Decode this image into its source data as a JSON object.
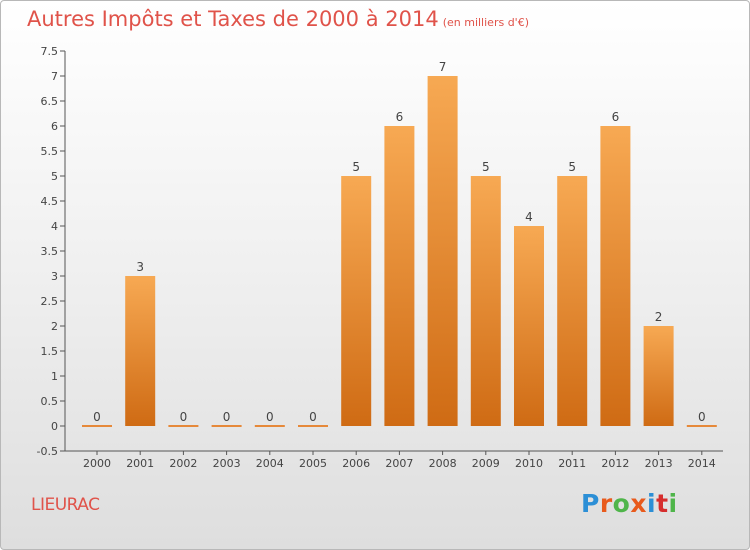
{
  "header": {
    "title": "Autres Impôts et Taxes de 2000 à 2014",
    "unit": "(en milliers d'€)"
  },
  "footer": {
    "place": "LIEURAC",
    "logo": "Proxiti",
    "logo_colors": [
      "#2c8fd6",
      "#e85a1c",
      "#4fb54a",
      "#e85a1c",
      "#2c8fd6",
      "#d62d2d",
      "#4fb54a"
    ]
  },
  "chart_data": {
    "type": "bar",
    "categories": [
      "2000",
      "2001",
      "2002",
      "2003",
      "2004",
      "2005",
      "2006",
      "2007",
      "2008",
      "2009",
      "2010",
      "2011",
      "2012",
      "2013",
      "2014"
    ],
    "values": [
      0,
      3,
      0,
      0,
      0,
      0,
      5,
      6,
      7,
      5,
      4,
      5,
      6,
      2,
      0
    ],
    "data_labels": [
      "0",
      "3",
      "0",
      "0",
      "0",
      "0",
      "5",
      "6",
      "7",
      "5",
      "4",
      "5",
      "6",
      "2",
      "0"
    ],
    "y_ticks": [
      "-0.5",
      "0",
      "0.5",
      "1",
      "1.5",
      "2",
      "2.5",
      "3",
      "3.5",
      "4",
      "4.5",
      "5",
      "5.5",
      "6",
      "6.5",
      "7",
      "7.5"
    ],
    "ylim": [
      -0.5,
      7.5
    ],
    "grid": false,
    "bar_color_top": "#f7a953",
    "bar_color_bottom": "#cf6b14"
  }
}
